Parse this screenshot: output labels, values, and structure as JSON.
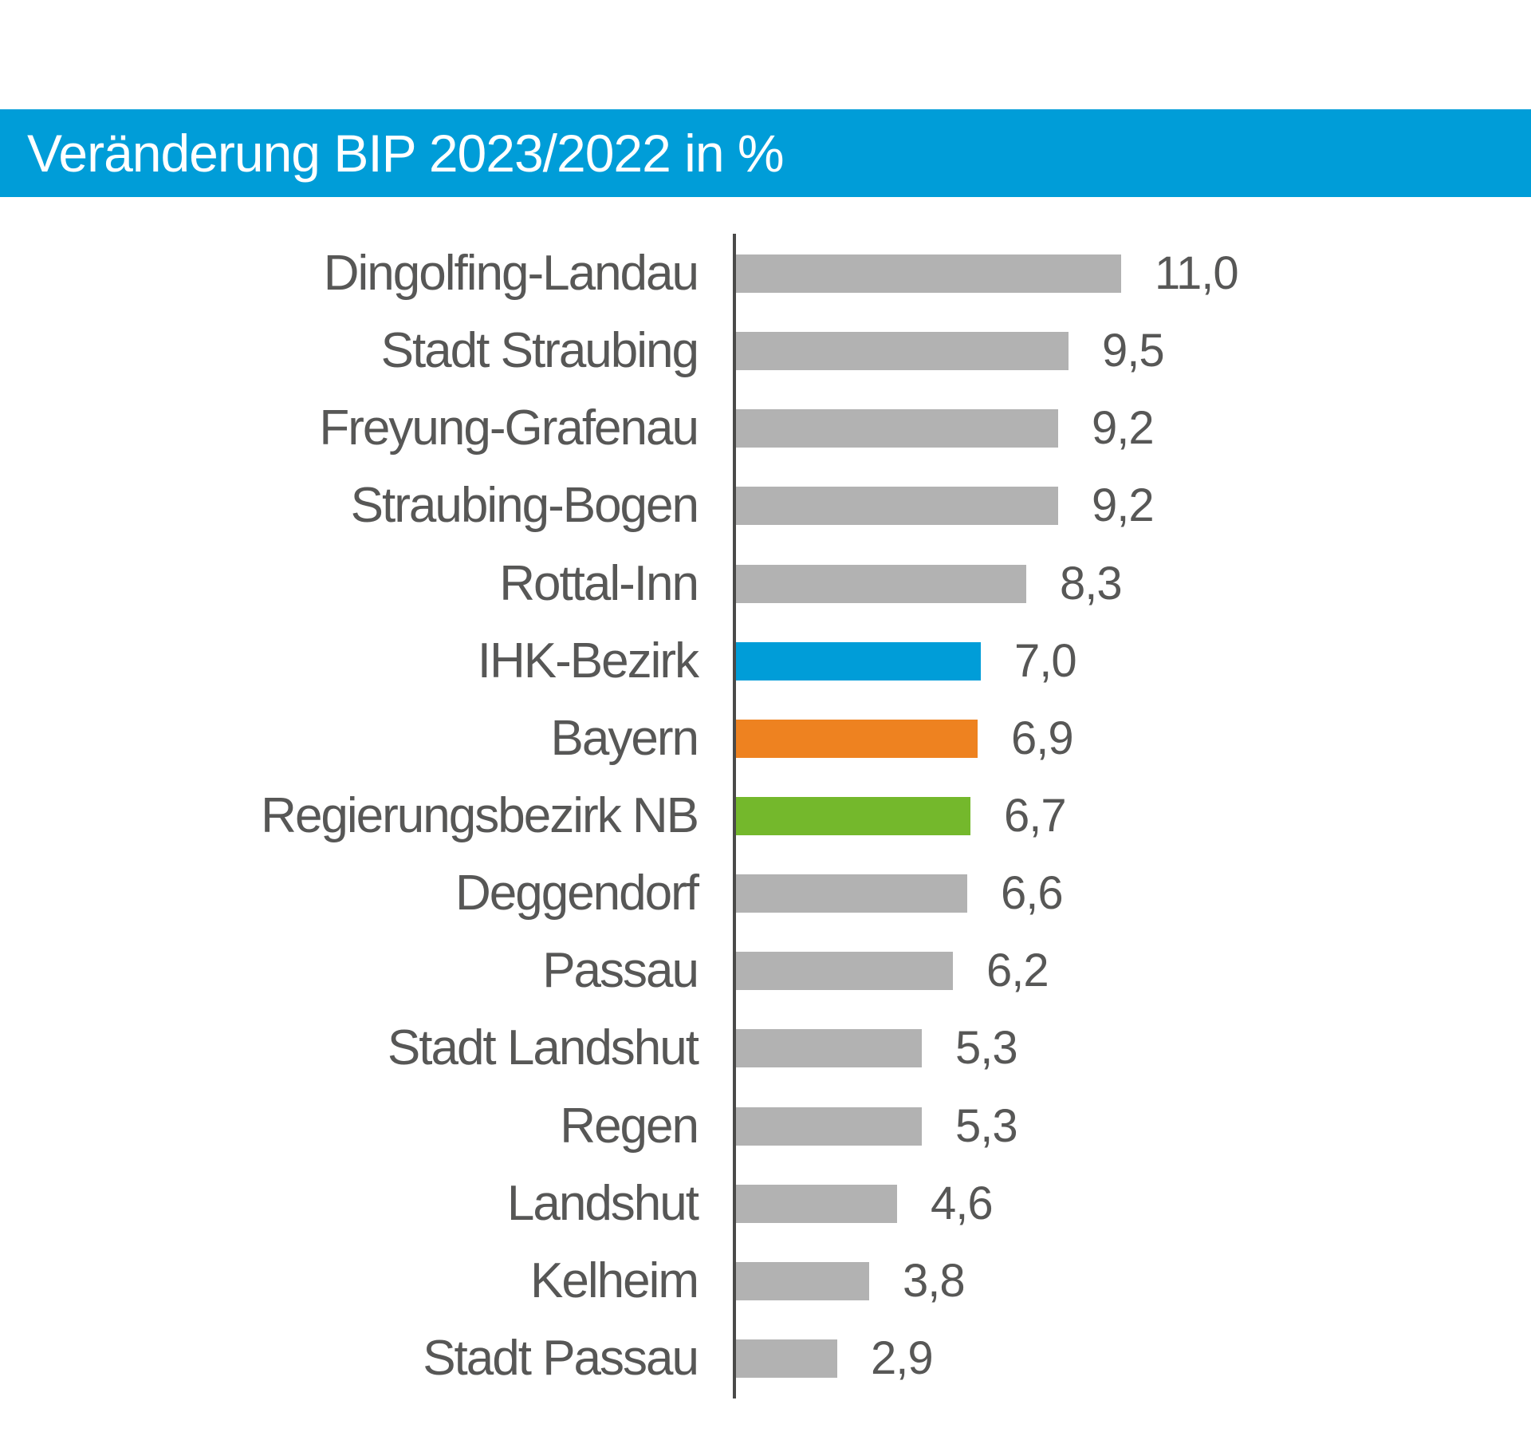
{
  "header": {
    "title": "Veränderung BIP 2023/2022 in %",
    "background_color": "#009dd8",
    "text_color": "#ffffff"
  },
  "chart_data": {
    "type": "bar",
    "orientation": "horizontal",
    "title": "Veränderung BIP 2023/2022 in %",
    "unit": "%",
    "xlim": [
      0,
      11.5
    ],
    "grid": false,
    "legend": false,
    "value_labels_position": "right-of-bar",
    "axis_color": "#4a4a49",
    "text_color": "#575756",
    "default_bar_color": "#b2b2b2",
    "highlight_colors": {
      "IHK-Bezirk": "#009dd8",
      "Bayern": "#ee8220",
      "Regierungsbezirk NB": "#74b82c"
    },
    "categories": [
      "Dingolfing-Landau",
      "Stadt Straubing",
      "Freyung-Grafenau",
      "Straubing-Bogen",
      "Rottal-Inn",
      "IHK-Bezirk",
      "Bayern",
      "Regierungsbezirk NB",
      "Deggendorf",
      "Passau",
      "Stadt Landshut",
      "Regen",
      "Landshut",
      "Kelheim",
      "Stadt Passau"
    ],
    "values": [
      11.0,
      9.5,
      9.2,
      9.2,
      8.3,
      7.0,
      6.9,
      6.7,
      6.6,
      6.2,
      5.3,
      5.3,
      4.6,
      3.8,
      2.9
    ],
    "bars": [
      {
        "label": "Dingolfing-Landau",
        "value": 11.0,
        "display": "11,0",
        "color": "#b2b2b2"
      },
      {
        "label": "Stadt Straubing",
        "value": 9.5,
        "display": "9,5",
        "color": "#b2b2b2"
      },
      {
        "label": "Freyung-Grafenau",
        "value": 9.2,
        "display": "9,2",
        "color": "#b2b2b2"
      },
      {
        "label": "Straubing-Bogen",
        "value": 9.2,
        "display": "9,2",
        "color": "#b2b2b2"
      },
      {
        "label": "Rottal-Inn",
        "value": 8.3,
        "display": "8,3",
        "color": "#b2b2b2"
      },
      {
        "label": "IHK-Bezirk",
        "value": 7.0,
        "display": "7,0",
        "color": "#009dd8"
      },
      {
        "label": "Bayern",
        "value": 6.9,
        "display": "6,9",
        "color": "#ee8220"
      },
      {
        "label": "Regierungsbezirk NB",
        "value": 6.7,
        "display": "6,7",
        "color": "#74b82c"
      },
      {
        "label": "Deggendorf",
        "value": 6.6,
        "display": "6,6",
        "color": "#b2b2b2"
      },
      {
        "label": "Passau",
        "value": 6.2,
        "display": "6,2",
        "color": "#b2b2b2"
      },
      {
        "label": "Stadt Landshut",
        "value": 5.3,
        "display": "5,3",
        "color": "#b2b2b2"
      },
      {
        "label": "Regen",
        "value": 5.3,
        "display": "5,3",
        "color": "#b2b2b2"
      },
      {
        "label": "Landshut",
        "value": 4.6,
        "display": "4,6",
        "color": "#b2b2b2"
      },
      {
        "label": "Kelheim",
        "value": 3.8,
        "display": "3,8",
        "color": "#b2b2b2"
      },
      {
        "label": "Stadt Passau",
        "value": 2.9,
        "display": "2,9",
        "color": "#b2b2b2"
      }
    ]
  }
}
